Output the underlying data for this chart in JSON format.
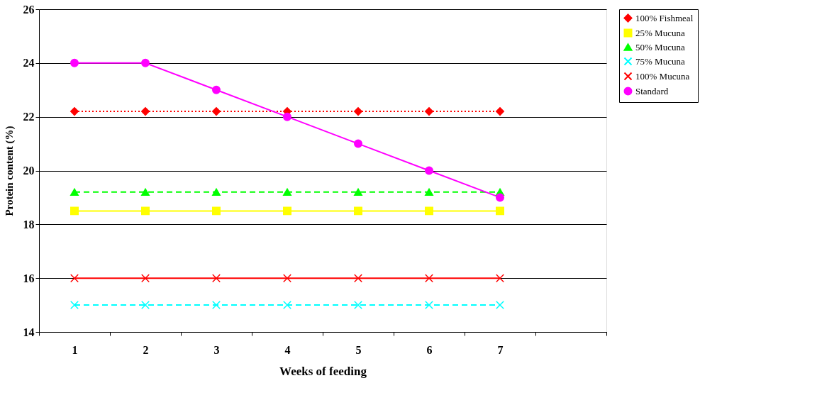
{
  "chart_data": {
    "type": "line",
    "xlabel": "Weeks of  feeding",
    "ylabel": "Protein content (%)",
    "categories": [
      "1",
      "2",
      "3",
      "4",
      "5",
      "6",
      "7",
      null
    ],
    "ylim": [
      14,
      26
    ],
    "yticks": [
      14,
      16,
      18,
      20,
      22,
      24,
      26
    ],
    "grid": "y",
    "legend": "right",
    "series": [
      {
        "name": "100% Fishmeal",
        "color": "#ff0000",
        "marker": "diamond",
        "line_style": "dotted",
        "values": [
          22.2,
          22.2,
          22.2,
          22.2,
          22.2,
          22.2,
          22.2,
          null
        ]
      },
      {
        "name": "25% Mucuna",
        "color": "#ffff00",
        "marker": "square",
        "line_style": "solid",
        "values": [
          18.5,
          18.5,
          18.5,
          18.5,
          18.5,
          18.5,
          18.5,
          null
        ]
      },
      {
        "name": "50% Mucuna",
        "color": "#00ff00",
        "marker": "triangle",
        "line_style": "dashed",
        "values": [
          19.2,
          19.2,
          19.2,
          19.2,
          19.2,
          19.2,
          19.2,
          null
        ]
      },
      {
        "name": "75% Mucuna",
        "color": "#00ffff",
        "marker": "cross",
        "line_style": "dashed",
        "values": [
          15,
          15,
          15,
          15,
          15,
          15,
          15,
          null
        ]
      },
      {
        "name": "100% Mucuna",
        "color": "#ff0000",
        "marker": "cross",
        "line_style": "solid",
        "values": [
          16,
          16,
          16,
          16,
          16,
          16,
          16,
          null
        ]
      },
      {
        "name": "Standard",
        "color": "#ff00ff",
        "marker": "circle",
        "line_style": "solid",
        "values": [
          24,
          24,
          23,
          22,
          21,
          20,
          19,
          null
        ]
      }
    ]
  }
}
